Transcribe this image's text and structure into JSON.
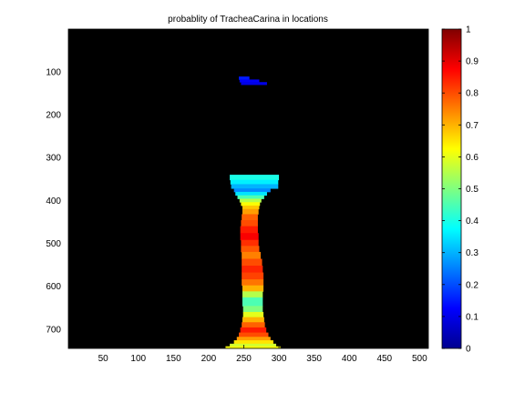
{
  "chart_data": {
    "type": "heatmap",
    "title": "probablity of TracheaCarina in locations",
    "xlabel": "",
    "ylabel": "",
    "xlim": [
      0.5,
      512.5
    ],
    "ylim": [
      0.5,
      745
    ],
    "y_reversed": true,
    "background_color": "#000000",
    "colormap": "jet",
    "x_ticks": [
      50,
      100,
      150,
      200,
      250,
      300,
      350,
      400,
      450,
      500
    ],
    "y_ticks": [
      100,
      200,
      300,
      400,
      500,
      600,
      700
    ],
    "colorbar": {
      "range": [
        0,
        1
      ],
      "ticks": [
        0,
        0.1,
        0.2,
        0.3,
        0.4,
        0.5,
        0.6,
        0.7,
        0.8,
        0.9,
        1
      ],
      "tick_labels": [
        "0",
        "0.1",
        "0.2",
        "0.3",
        "0.4",
        "0.5",
        "0.6",
        "0.7",
        "0.8",
        "0.9",
        "1"
      ]
    },
    "regions": [
      {
        "y": [
          111,
          118
        ],
        "x": [
          243,
          258
        ],
        "value": 0.15
      },
      {
        "y": [
          118,
          124
        ],
        "x": [
          244,
          272
        ],
        "value": 0.12
      },
      {
        "y": [
          124,
          130
        ],
        "x": [
          246,
          283
        ],
        "value": 0.1
      },
      {
        "y": [
          340,
          352
        ],
        "x": [
          230,
          300
        ],
        "value": 0.4
      },
      {
        "y": [
          352,
          362
        ],
        "x": [
          231,
          299
        ],
        "value": 0.36
      },
      {
        "y": [
          362,
          372
        ],
        "x": [
          232,
          299
        ],
        "value": 0.3
      },
      {
        "y": [
          372,
          380
        ],
        "x": [
          236,
          288
        ],
        "value": 0.26
      },
      {
        "y": [
          380,
          388
        ],
        "x": [
          238,
          283
        ],
        "value": 0.35
      },
      {
        "y": [
          388,
          396
        ],
        "x": [
          241,
          279
        ],
        "value": 0.45
      },
      {
        "y": [
          396,
          404
        ],
        "x": [
          244,
          275
        ],
        "value": 0.55
      },
      {
        "y": [
          404,
          412
        ],
        "x": [
          246,
          273
        ],
        "value": 0.62
      },
      {
        "y": [
          412,
          420
        ],
        "x": [
          248,
          272
        ],
        "value": 0.68
      },
      {
        "y": [
          420,
          432
        ],
        "x": [
          248,
          271
        ],
        "value": 0.72
      },
      {
        "y": [
          432,
          446
        ],
        "x": [
          247,
          270
        ],
        "value": 0.78
      },
      {
        "y": [
          446,
          460
        ],
        "x": [
          246,
          270
        ],
        "value": 0.8
      },
      {
        "y": [
          460,
          476
        ],
        "x": [
          245,
          270
        ],
        "value": 0.85
      },
      {
        "y": [
          476,
          492
        ],
        "x": [
          245,
          271
        ],
        "value": 0.88
      },
      {
        "y": [
          492,
          506
        ],
        "x": [
          246,
          271
        ],
        "value": 0.83
      },
      {
        "y": [
          506,
          520
        ],
        "x": [
          246,
          272
        ],
        "value": 0.79
      },
      {
        "y": [
          520,
          536
        ],
        "x": [
          247,
          274
        ],
        "value": 0.75
      },
      {
        "y": [
          536,
          552
        ],
        "x": [
          247,
          276
        ],
        "value": 0.8
      },
      {
        "y": [
          552,
          568
        ],
        "x": [
          247,
          277
        ],
        "value": 0.84
      },
      {
        "y": [
          568,
          584
        ],
        "x": [
          247,
          278
        ],
        "value": 0.81
      },
      {
        "y": [
          584,
          598
        ],
        "x": [
          247,
          278
        ],
        "value": 0.76
      },
      {
        "y": [
          598,
          612
        ],
        "x": [
          248,
          278
        ],
        "value": 0.7
      },
      {
        "y": [
          612,
          626
        ],
        "x": [
          248,
          277
        ],
        "value": 0.55
      },
      {
        "y": [
          626,
          646
        ],
        "x": [
          248,
          277
        ],
        "value": 0.45
      },
      {
        "y": [
          646,
          660
        ],
        "x": [
          249,
          277
        ],
        "value": 0.5
      },
      {
        "y": [
          660,
          672
        ],
        "x": [
          249,
          278
        ],
        "value": 0.6
      },
      {
        "y": [
          672,
          684
        ],
        "x": [
          248,
          279
        ],
        "value": 0.7
      },
      {
        "y": [
          684,
          696
        ],
        "x": [
          247,
          280
        ],
        "value": 0.78
      },
      {
        "y": [
          696,
          708
        ],
        "x": [
          245,
          282
        ],
        "value": 0.85
      },
      {
        "y": [
          708,
          718
        ],
        "x": [
          243,
          285
        ],
        "value": 0.8
      },
      {
        "y": [
          718,
          726
        ],
        "x": [
          240,
          288
        ],
        "value": 0.72
      },
      {
        "y": [
          726,
          734
        ],
        "x": [
          236,
          292
        ],
        "value": 0.65
      },
      {
        "y": [
          734,
          740
        ],
        "x": [
          230,
          296
        ],
        "value": 0.58
      },
      {
        "y": [
          740,
          745
        ],
        "x": [
          224,
          302
        ],
        "value": 0.62
      }
    ]
  }
}
